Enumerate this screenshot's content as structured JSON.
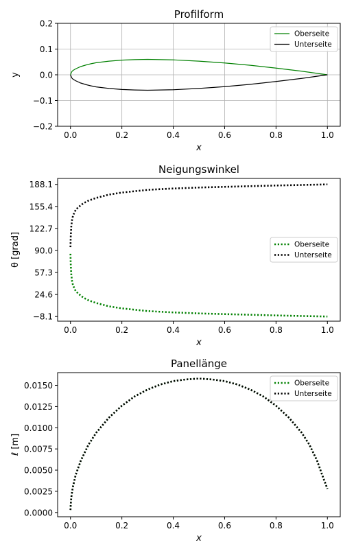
{
  "chart_data": [
    {
      "type": "line",
      "title": "Profilform",
      "xlabel": "x",
      "ylabel": "y",
      "xlim": [
        -0.05,
        1.05
      ],
      "ylim": [
        -0.2,
        0.2
      ],
      "xticks": [
        0.0,
        0.2,
        0.4,
        0.6,
        0.8,
        1.0
      ],
      "xtick_labels": [
        "0.0",
        "0.2",
        "0.4",
        "0.6",
        "0.8",
        "1.0"
      ],
      "yticks": [
        -0.2,
        -0.1,
        0.0,
        0.1,
        0.2
      ],
      "ytick_labels": [
        "−0.2",
        "−0.1",
        "0.0",
        "0.1",
        "0.2"
      ],
      "grid": true,
      "legend": "upper-right",
      "series": [
        {
          "name": "Oberseite",
          "color": "#008000",
          "style": "solid",
          "x": [
            0.0,
            0.005,
            0.01,
            0.02,
            0.04,
            0.06,
            0.08,
            0.1,
            0.15,
            0.2,
            0.25,
            0.3,
            0.35,
            0.4,
            0.5,
            0.6,
            0.7,
            0.8,
            0.9,
            0.95,
            1.0
          ],
          "y": [
            0.0,
            0.012,
            0.017,
            0.023,
            0.032,
            0.038,
            0.043,
            0.047,
            0.053,
            0.057,
            0.059,
            0.06,
            0.059,
            0.058,
            0.053,
            0.046,
            0.037,
            0.026,
            0.014,
            0.007,
            0.0
          ]
        },
        {
          "name": "Unterseite",
          "color": "#000000",
          "style": "solid",
          "x": [
            0.0,
            0.005,
            0.01,
            0.02,
            0.04,
            0.06,
            0.08,
            0.1,
            0.15,
            0.2,
            0.25,
            0.3,
            0.35,
            0.4,
            0.5,
            0.6,
            0.7,
            0.8,
            0.9,
            0.95,
            1.0
          ],
          "y": [
            0.0,
            -0.012,
            -0.017,
            -0.023,
            -0.032,
            -0.038,
            -0.043,
            -0.047,
            -0.053,
            -0.057,
            -0.059,
            -0.06,
            -0.059,
            -0.058,
            -0.053,
            -0.046,
            -0.037,
            -0.026,
            -0.014,
            -0.007,
            0.0
          ]
        }
      ]
    },
    {
      "type": "line",
      "title": "Neigungswinkel",
      "xlabel": "x",
      "ylabel": "θ [grad]",
      "xlim": [
        -0.05,
        1.05
      ],
      "ylim": [
        -15,
        197
      ],
      "xticks": [
        0.0,
        0.2,
        0.4,
        0.6,
        0.8,
        1.0
      ],
      "xtick_labels": [
        "0.0",
        "0.2",
        "0.4",
        "0.6",
        "0.8",
        "1.0"
      ],
      "yticks": [
        -8.1,
        24.6,
        57.3,
        90.0,
        122.7,
        155.4,
        188.1
      ],
      "ytick_labels": [
        "−8.1",
        "24.6",
        "57.3",
        "90.0",
        "122.7",
        "155.4",
        "188.1"
      ],
      "grid": false,
      "legend": "center-right",
      "series": [
        {
          "name": "Oberseite",
          "color": "#008000",
          "style": "dotted",
          "x": [
            0.0,
            0.001,
            0.003,
            0.006,
            0.01,
            0.02,
            0.03,
            0.05,
            0.07,
            0.1,
            0.15,
            0.2,
            0.3,
            0.4,
            0.5,
            0.6,
            0.7,
            0.8,
            0.9,
            1.0
          ],
          "y": [
            85,
            70,
            55,
            45,
            38,
            30,
            26,
            20,
            16,
            12,
            7,
            4,
            0,
            -2,
            -3.5,
            -4.5,
            -5.5,
            -6.5,
            -7.3,
            -8.1
          ]
        },
        {
          "name": "Unterseite",
          "color": "#000000",
          "style": "dotted",
          "x": [
            0.0,
            0.001,
            0.003,
            0.006,
            0.01,
            0.02,
            0.03,
            0.05,
            0.07,
            0.1,
            0.15,
            0.2,
            0.3,
            0.4,
            0.5,
            0.6,
            0.7,
            0.8,
            0.9,
            1.0
          ],
          "y": [
            95,
            110,
            125,
            135,
            142,
            150,
            154,
            160,
            164,
            168,
            173,
            176,
            180,
            182,
            183.5,
            184.5,
            185.5,
            186.5,
            187.3,
            188.1
          ]
        }
      ]
    },
    {
      "type": "line",
      "title": "Panellänge",
      "xlabel": "x",
      "ylabel": "ℓ  [m]",
      "xlim": [
        -0.05,
        1.05
      ],
      "ylim": [
        -0.0005,
        0.0165
      ],
      "xticks": [
        0.0,
        0.2,
        0.4,
        0.6,
        0.8,
        1.0
      ],
      "xtick_labels": [
        "0.0",
        "0.2",
        "0.4",
        "0.6",
        "0.8",
        "1.0"
      ],
      "yticks": [
        0.0,
        0.0025,
        0.005,
        0.0075,
        0.01,
        0.0125,
        0.015
      ],
      "ytick_labels": [
        "0.0000",
        "0.0025",
        "0.0050",
        "0.0075",
        "0.0100",
        "0.0125",
        "0.0150"
      ],
      "grid": false,
      "legend": "upper-right",
      "series": [
        {
          "name": "Oberseite",
          "color": "#008000",
          "style": "dotted",
          "x": [
            0.0,
            0.002,
            0.005,
            0.01,
            0.02,
            0.04,
            0.07,
            0.1,
            0.15,
            0.2,
            0.25,
            0.3,
            0.35,
            0.4,
            0.45,
            0.5,
            0.55,
            0.6,
            0.65,
            0.7,
            0.75,
            0.8,
            0.85,
            0.9,
            0.93,
            0.96,
            0.98,
            0.99,
            1.0
          ],
          "y": [
            0.0003,
            0.0014,
            0.0022,
            0.0031,
            0.0044,
            0.0061,
            0.008,
            0.0094,
            0.0112,
            0.0126,
            0.0137,
            0.0145,
            0.0151,
            0.0155,
            0.0157,
            0.0158,
            0.0157,
            0.0155,
            0.0151,
            0.0145,
            0.0137,
            0.0126,
            0.0112,
            0.0094,
            0.008,
            0.0061,
            0.0044,
            0.0036,
            0.0028
          ]
        },
        {
          "name": "Unterseite",
          "color": "#000000",
          "style": "dotted",
          "x": [
            0.0,
            0.002,
            0.005,
            0.01,
            0.02,
            0.04,
            0.07,
            0.1,
            0.15,
            0.2,
            0.25,
            0.3,
            0.35,
            0.4,
            0.45,
            0.5,
            0.55,
            0.6,
            0.65,
            0.7,
            0.75,
            0.8,
            0.85,
            0.9,
            0.93,
            0.96,
            0.98,
            0.99,
            1.0
          ],
          "y": [
            0.0003,
            0.0014,
            0.0022,
            0.0031,
            0.0044,
            0.0061,
            0.008,
            0.0094,
            0.0112,
            0.0126,
            0.0137,
            0.0145,
            0.0151,
            0.0155,
            0.0157,
            0.0158,
            0.0157,
            0.0155,
            0.0151,
            0.0145,
            0.0137,
            0.0126,
            0.0112,
            0.0094,
            0.008,
            0.0061,
            0.0044,
            0.0036,
            0.0028
          ]
        }
      ]
    }
  ]
}
